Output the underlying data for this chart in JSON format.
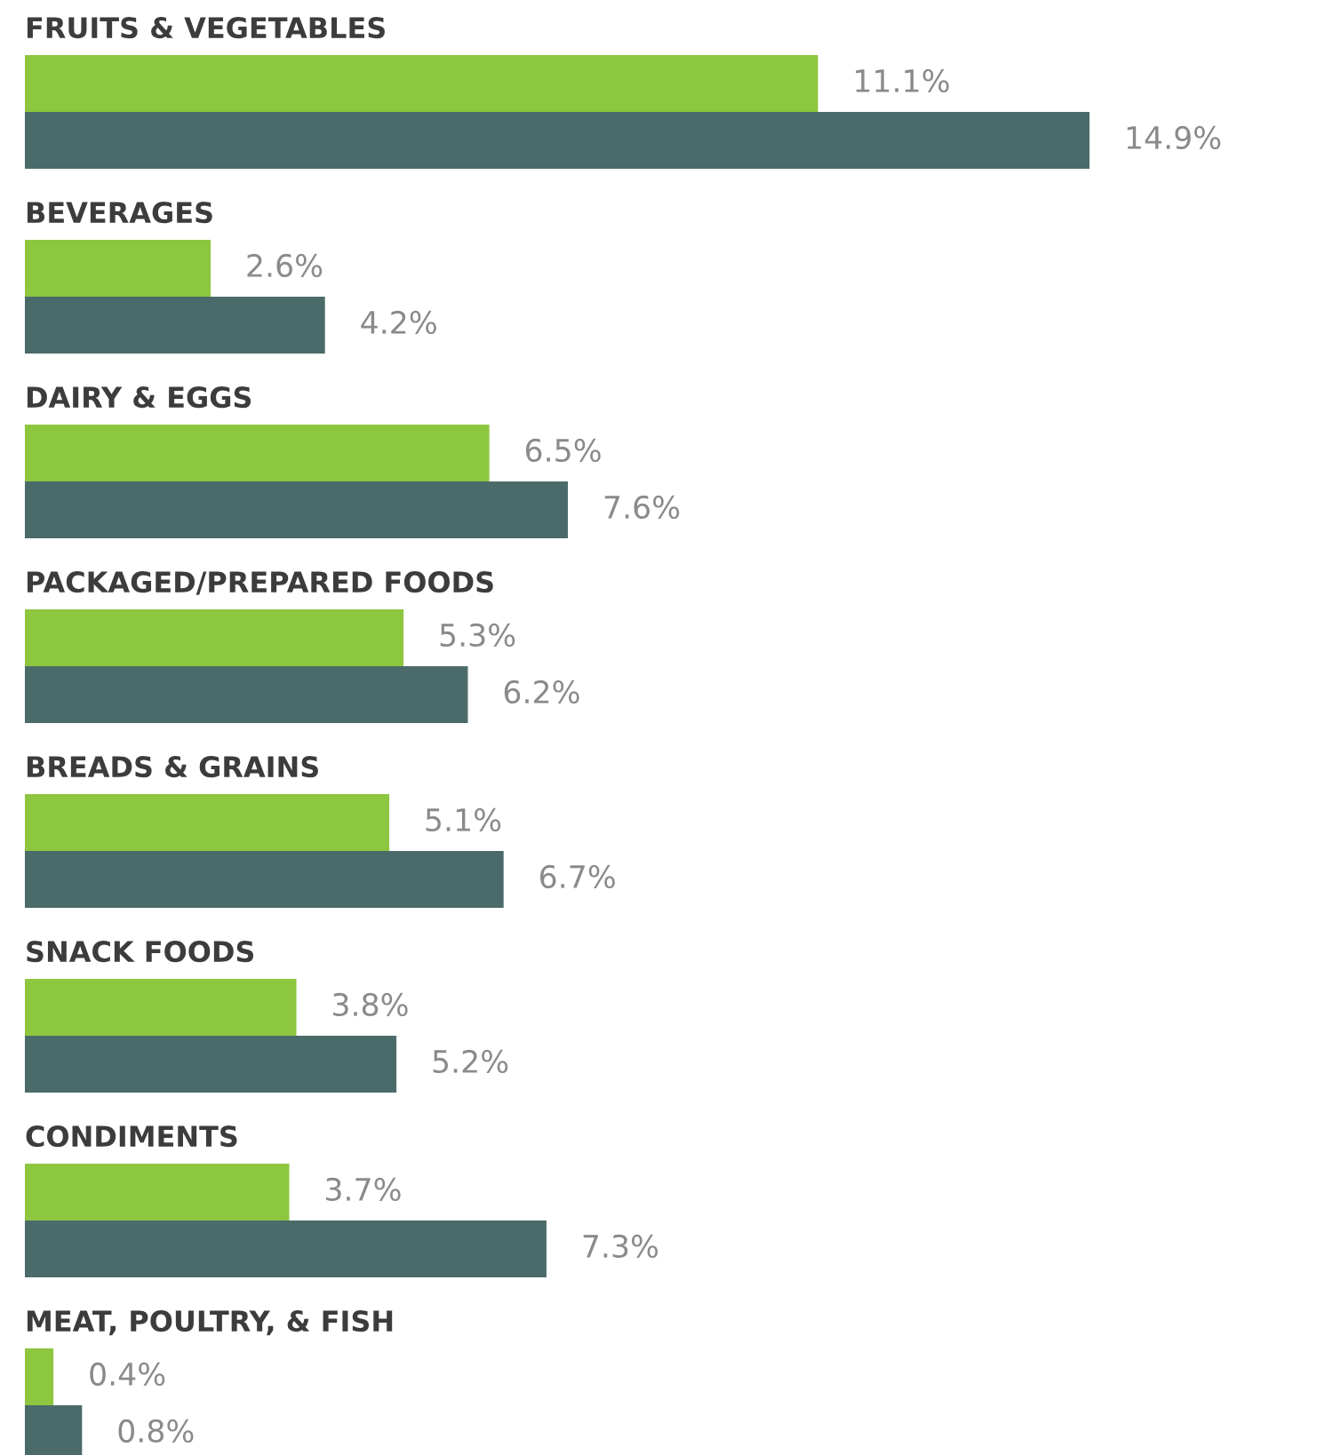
{
  "chart_data": {
    "type": "bar",
    "orientation": "horizontal",
    "categories": [
      "FRUITS & VEGETABLES",
      "BEVERAGES",
      "DAIRY & EGGS",
      "PACKAGED/PREPARED FOODS",
      "BREADS & GRAINS",
      "SNACK FOODS",
      "CONDIMENTS",
      "MEAT, POULTRY, & FISH"
    ],
    "series": [
      {
        "color": "#8dc63f",
        "values": [
          11.1,
          2.6,
          6.5,
          5.3,
          5.1,
          3.8,
          3.7,
          0.4
        ],
        "value_labels": [
          "11.1%",
          "2.6%",
          "6.5%",
          "5.3%",
          "5.1%",
          "3.8%",
          "3.7%",
          "0.4%"
        ]
      },
      {
        "color": "#4b6b6a",
        "values": [
          14.9,
          4.2,
          7.6,
          6.2,
          6.7,
          5.2,
          7.3,
          0.8
        ],
        "value_labels": [
          "14.9%",
          "4.2%",
          "7.6%",
          "6.2%",
          "6.7%",
          "5.2%",
          "7.3%",
          "0.8%"
        ]
      }
    ]
  }
}
